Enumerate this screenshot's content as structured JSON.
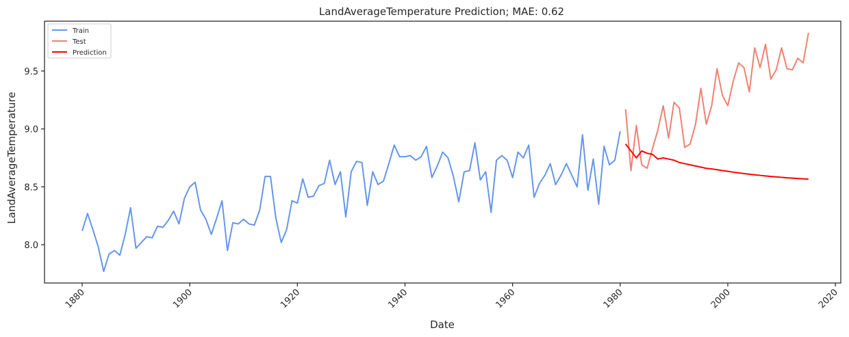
{
  "chart_data": {
    "type": "line",
    "title": "LandAverageTemperature Prediction; MAE: 0.62",
    "xlabel": "Date",
    "ylabel": "LandAverageTemperature",
    "xlim": [
      1873,
      2021
    ],
    "ylim": [
      7.67,
      9.93
    ],
    "x_ticks": [
      1880,
      1900,
      1920,
      1940,
      1960,
      1980,
      2000,
      2020
    ],
    "y_ticks": [
      8.0,
      8.5,
      9.0,
      9.5
    ],
    "y_tick_labels": [
      "8.0",
      "8.5",
      "9.0",
      "9.5"
    ],
    "grid": false,
    "legend_position": "top-left",
    "series": [
      {
        "name": "Train",
        "color": "#6495ED",
        "x": [
          1880,
          1881,
          1882,
          1883,
          1884,
          1885,
          1886,
          1887,
          1888,
          1889,
          1890,
          1891,
          1892,
          1893,
          1894,
          1895,
          1896,
          1897,
          1898,
          1899,
          1900,
          1901,
          1902,
          1903,
          1904,
          1905,
          1906,
          1907,
          1908,
          1909,
          1910,
          1911,
          1912,
          1913,
          1914,
          1915,
          1916,
          1917,
          1918,
          1919,
          1920,
          1921,
          1922,
          1923,
          1924,
          1925,
          1926,
          1927,
          1928,
          1929,
          1930,
          1931,
          1932,
          1933,
          1934,
          1935,
          1936,
          1937,
          1938,
          1939,
          1940,
          1941,
          1942,
          1943,
          1944,
          1945,
          1946,
          1947,
          1948,
          1949,
          1950,
          1951,
          1952,
          1953,
          1954,
          1955,
          1956,
          1957,
          1958,
          1959,
          1960,
          1961,
          1962,
          1963,
          1964,
          1965,
          1966,
          1967,
          1968,
          1969,
          1970,
          1971,
          1972,
          1973,
          1974,
          1975,
          1976,
          1977,
          1978,
          1979,
          1980
        ],
        "y": [
          8.12,
          8.27,
          8.13,
          7.98,
          7.77,
          7.92,
          7.95,
          7.91,
          8.09,
          8.32,
          7.97,
          8.02,
          8.07,
          8.06,
          8.16,
          8.15,
          8.21,
          8.29,
          8.18,
          8.4,
          8.5,
          8.54,
          8.3,
          8.22,
          8.09,
          8.23,
          8.38,
          7.95,
          8.19,
          8.18,
          8.22,
          8.18,
          8.17,
          8.3,
          8.59,
          8.59,
          8.23,
          8.02,
          8.13,
          8.38,
          8.36,
          8.57,
          8.41,
          8.42,
          8.51,
          8.53,
          8.73,
          8.52,
          8.63,
          8.24,
          8.63,
          8.72,
          8.71,
          8.34,
          8.63,
          8.52,
          8.55,
          8.7,
          8.86,
          8.76,
          8.76,
          8.77,
          8.73,
          8.76,
          8.85,
          8.58,
          8.68,
          8.8,
          8.75,
          8.59,
          8.37,
          8.63,
          8.64,
          8.88,
          8.56,
          8.63,
          8.28,
          8.73,
          8.77,
          8.73,
          8.58,
          8.8,
          8.75,
          8.86,
          8.41,
          8.53,
          8.6,
          8.7,
          8.52,
          8.6,
          8.7,
          8.6,
          8.5,
          8.95,
          8.47,
          8.74,
          8.35,
          8.85,
          8.69,
          8.73,
          8.98
        ]
      },
      {
        "name": "Test",
        "color": "#F08070",
        "x": [
          1981,
          1982,
          1983,
          1984,
          1985,
          1986,
          1987,
          1988,
          1989,
          1990,
          1991,
          1992,
          1993,
          1994,
          1995,
          1996,
          1997,
          1998,
          1999,
          2000,
          2001,
          2002,
          2003,
          2004,
          2005,
          2006,
          2007,
          2008,
          2009,
          2010,
          2011,
          2012,
          2013,
          2014,
          2015
        ],
        "y": [
          9.17,
          8.64,
          9.03,
          8.69,
          8.66,
          8.83,
          8.99,
          9.2,
          8.92,
          9.23,
          9.18,
          8.84,
          8.87,
          9.04,
          9.35,
          9.04,
          9.2,
          9.52,
          9.29,
          9.2,
          9.41,
          9.57,
          9.53,
          9.32,
          9.7,
          9.53,
          9.73,
          9.43,
          9.51,
          9.7,
          9.52,
          9.51,
          9.61,
          9.57,
          9.83
        ]
      },
      {
        "name": "Prediction",
        "color": "#FF0000",
        "x": [
          1981,
          1982,
          1983,
          1984,
          1985,
          1986,
          1987,
          1988,
          1989,
          1990,
          1991,
          1992,
          1993,
          1994,
          1995,
          1996,
          1997,
          1998,
          1999,
          2000,
          2001,
          2002,
          2003,
          2004,
          2005,
          2006,
          2007,
          2008,
          2009,
          2010,
          2011,
          2012,
          2013,
          2014,
          2015
        ],
        "y": [
          8.87,
          8.81,
          8.75,
          8.81,
          8.79,
          8.78,
          8.74,
          8.75,
          8.74,
          8.73,
          8.71,
          8.7,
          8.69,
          8.68,
          8.67,
          8.66,
          8.655,
          8.648,
          8.641,
          8.634,
          8.627,
          8.621,
          8.615,
          8.609,
          8.604,
          8.599,
          8.594,
          8.59,
          8.586,
          8.582,
          8.578,
          8.575,
          8.572,
          8.569,
          8.566
        ]
      }
    ]
  }
}
